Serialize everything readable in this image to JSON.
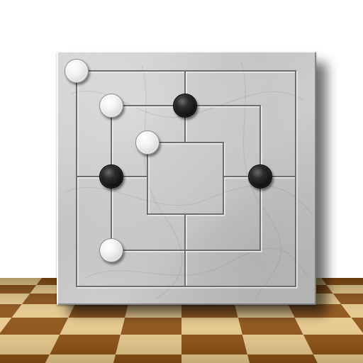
{
  "game": "nine-mens-morris",
  "colors": {
    "board": "#c8c8c8",
    "groove_dark": "#6e6e6e",
    "groove_light": "#f0f0f0",
    "white_piece": "#f2f2f2",
    "black_piece": "#141414",
    "floor_light": "#e9c98a",
    "floor_dark": "#8a4e10"
  },
  "board_points": [
    {
      "id": "a7",
      "ring": "outer",
      "pos": "top-left",
      "col": 0,
      "row": 0
    },
    {
      "id": "d7",
      "ring": "outer",
      "pos": "top-middle",
      "col": 3,
      "row": 0
    },
    {
      "id": "g7",
      "ring": "outer",
      "pos": "top-right",
      "col": 6,
      "row": 0
    },
    {
      "id": "b6",
      "ring": "middle",
      "pos": "top-left",
      "col": 1,
      "row": 1
    },
    {
      "id": "d6",
      "ring": "middle",
      "pos": "top-middle",
      "col": 3,
      "row": 1
    },
    {
      "id": "f6",
      "ring": "middle",
      "pos": "top-right",
      "col": 5,
      "row": 1
    },
    {
      "id": "c5",
      "ring": "inner",
      "pos": "top-left",
      "col": 2,
      "row": 2
    },
    {
      "id": "d5",
      "ring": "inner",
      "pos": "top-middle",
      "col": 3,
      "row": 2
    },
    {
      "id": "e5",
      "ring": "inner",
      "pos": "top-right",
      "col": 4,
      "row": 2
    },
    {
      "id": "a4",
      "ring": "outer",
      "pos": "middle-left",
      "col": 0,
      "row": 3
    },
    {
      "id": "b4",
      "ring": "middle",
      "pos": "middle-left",
      "col": 1,
      "row": 3
    },
    {
      "id": "c4",
      "ring": "inner",
      "pos": "middle-left",
      "col": 2,
      "row": 3
    },
    {
      "id": "e4",
      "ring": "inner",
      "pos": "middle-right",
      "col": 4,
      "row": 3
    },
    {
      "id": "f4",
      "ring": "middle",
      "pos": "middle-right",
      "col": 5,
      "row": 3
    },
    {
      "id": "g4",
      "ring": "outer",
      "pos": "middle-right",
      "col": 6,
      "row": 3
    },
    {
      "id": "c3",
      "ring": "inner",
      "pos": "bottom-left",
      "col": 2,
      "row": 4
    },
    {
      "id": "d3",
      "ring": "inner",
      "pos": "bottom-middle",
      "col": 3,
      "row": 4
    },
    {
      "id": "e3",
      "ring": "inner",
      "pos": "bottom-right",
      "col": 4,
      "row": 4
    },
    {
      "id": "b2",
      "ring": "middle",
      "pos": "bottom-left",
      "col": 1,
      "row": 5
    },
    {
      "id": "d2",
      "ring": "middle",
      "pos": "bottom-middle",
      "col": 3,
      "row": 5
    },
    {
      "id": "f2",
      "ring": "middle",
      "pos": "bottom-right",
      "col": 5,
      "row": 5
    },
    {
      "id": "a1",
      "ring": "outer",
      "pos": "bottom-left",
      "col": 0,
      "row": 6
    },
    {
      "id": "d1",
      "ring": "outer",
      "pos": "bottom-middle",
      "col": 3,
      "row": 6
    },
    {
      "id": "g1",
      "ring": "outer",
      "pos": "bottom-right",
      "col": 6,
      "row": 6
    }
  ],
  "pieces": [
    {
      "color": "white",
      "point": "a7"
    },
    {
      "color": "white",
      "point": "b6"
    },
    {
      "color": "black",
      "point": "d6"
    },
    {
      "color": "white",
      "point": "c5"
    },
    {
      "color": "black",
      "point": "b4"
    },
    {
      "color": "black",
      "point": "f4"
    },
    {
      "color": "white",
      "point": "b2"
    }
  ]
}
